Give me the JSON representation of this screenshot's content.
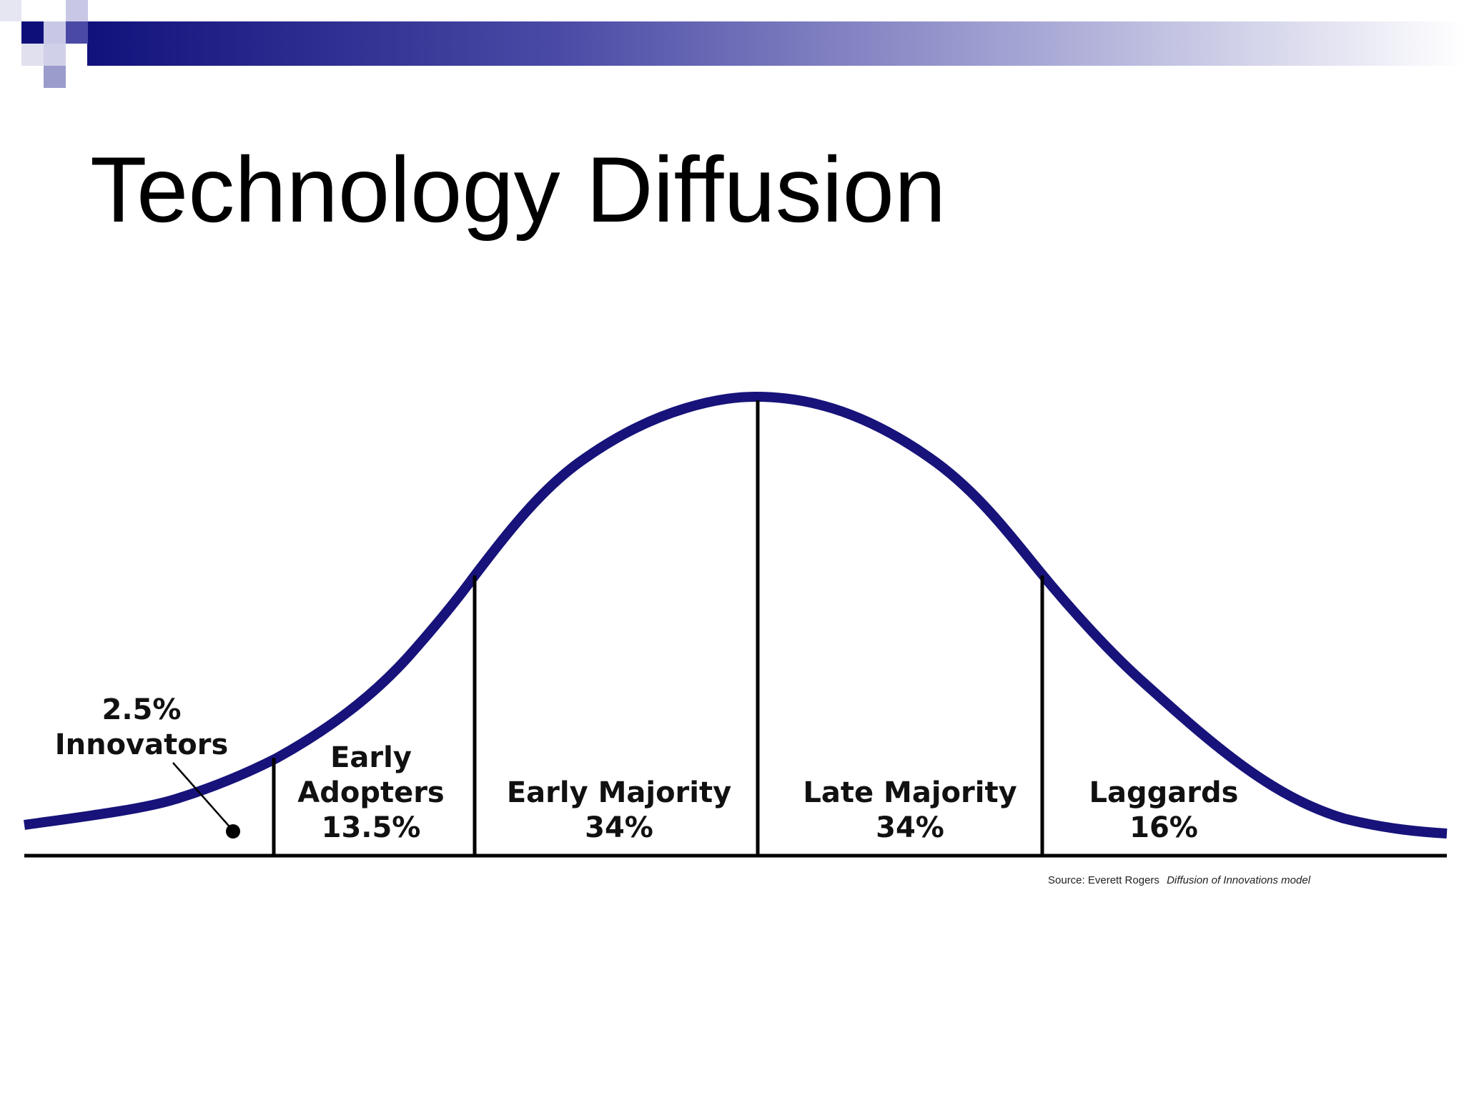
{
  "slide": {
    "title": "Technology Diffusion",
    "colors": {
      "curve": "#17137a",
      "banner_start": "#0f0f7a",
      "banner_end": "#ffffff",
      "lines": "#000000"
    }
  },
  "diagram": {
    "segments": [
      {
        "name": "Innovators",
        "percent": "2.5%",
        "order": "percent-first"
      },
      {
        "name": "Early Adopters",
        "name_lines": [
          "Early",
          "Adopters"
        ],
        "percent": "13.5%"
      },
      {
        "name": "Early Majority",
        "percent": "34%"
      },
      {
        "name": "Late Majority",
        "percent": "34%"
      },
      {
        "name": "Laggards",
        "percent": "16%"
      }
    ],
    "source": {
      "prefix": "Source: Everett Rogers",
      "work": "Diffusion of Innovations model"
    }
  }
}
